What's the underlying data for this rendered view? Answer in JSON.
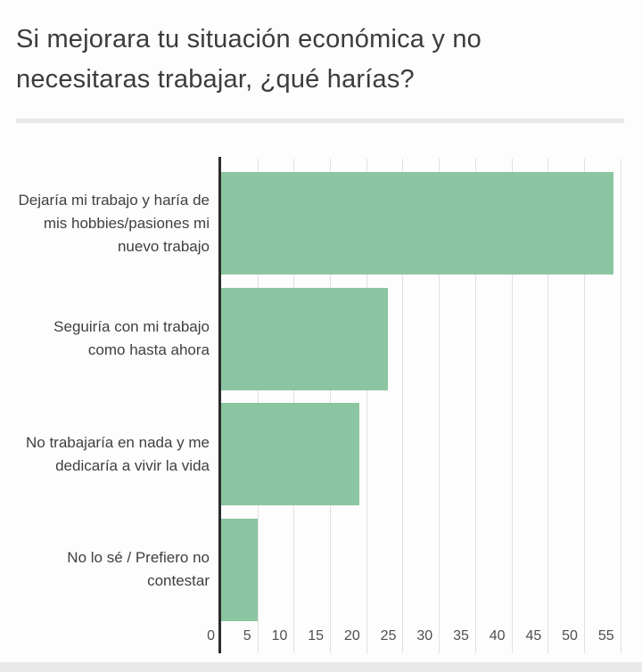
{
  "title": "Si mejorara tu situación económica y no necesitaras trabajar, ¿qué harías?",
  "chart_data": {
    "type": "bar",
    "orientation": "horizontal",
    "title": "Si mejorara tu situación económica y no necesitaras trabajar, ¿qué harías?",
    "categories": [
      "Dejaría mi trabajo y haría de mis hobbies/pasiones mi nuevo trabajo",
      "Seguiría con mi trabajo como hasta ahora",
      "No trabajaría en nada y me dedicaría a vivir la vida",
      "No lo sé / Prefiero no contestar"
    ],
    "values": [
      54,
      23,
      19,
      5
    ],
    "x_ticks": [
      0,
      5,
      10,
      15,
      20,
      25,
      30,
      35,
      40,
      45,
      50,
      55
    ],
    "xlim": [
      0,
      57.5
    ],
    "xlabel": "",
    "ylabel": "",
    "grid": true,
    "legend": false,
    "bar_color": "#8cc5a1"
  },
  "colors": {
    "background": "#fdfdfd",
    "bar": "#8cc5a1",
    "axis_line": "#2b2b2b",
    "gridline": "#e0e0e0",
    "title_text": "#3c3c3c",
    "category_text": "#3f3f3f",
    "tick_text": "#4f4f4f",
    "divider": "#e8e8e8",
    "footer_strip": "#e9e9e9"
  }
}
